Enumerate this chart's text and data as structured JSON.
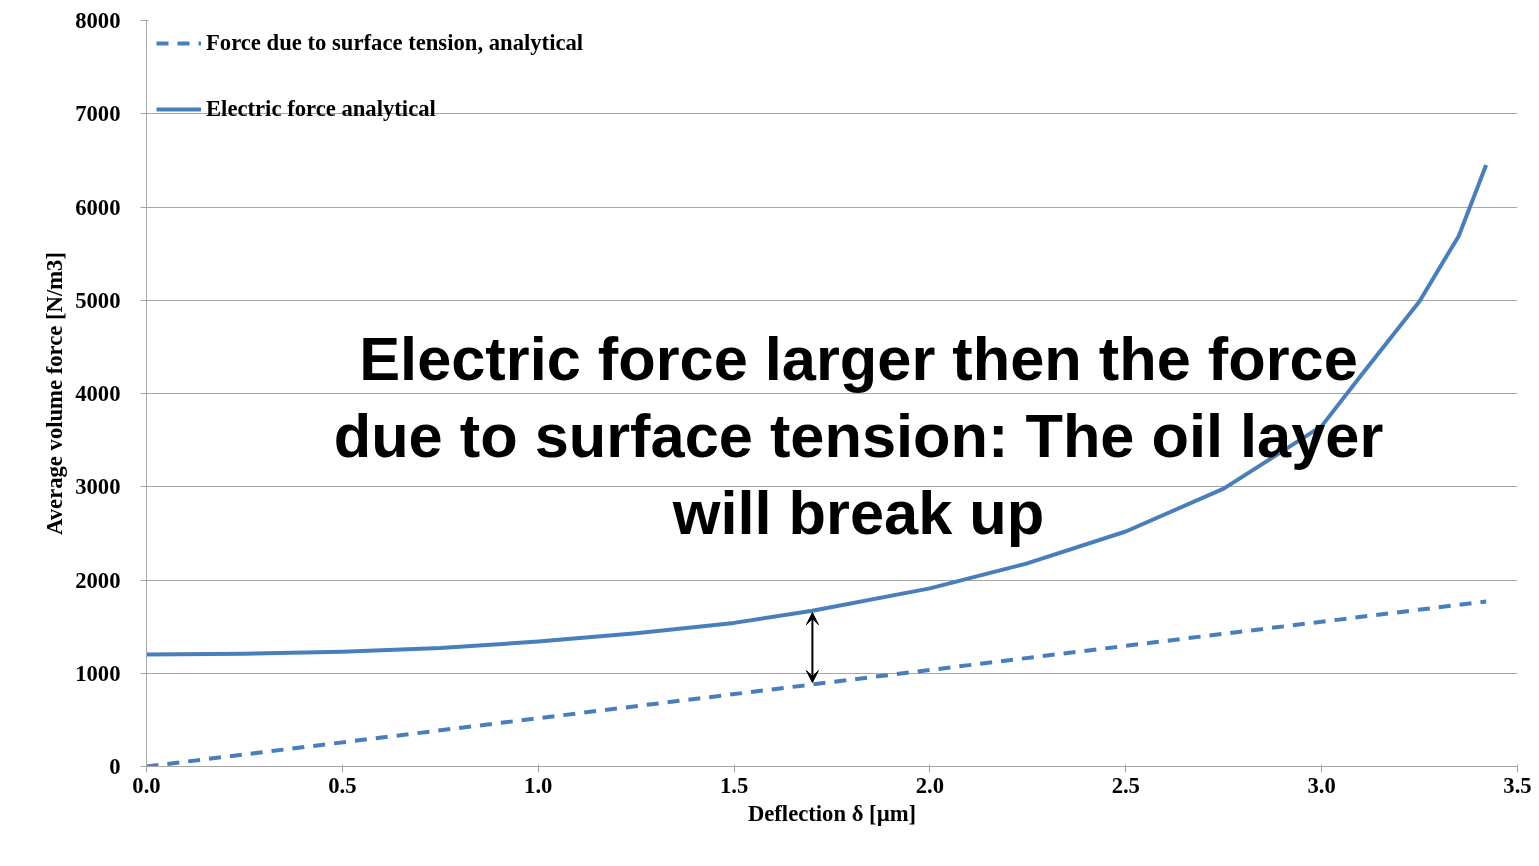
{
  "chart_data": {
    "type": "line",
    "xlabel": "Deflection δ [µm]",
    "ylabel": "Average volume force [N/m3]",
    "xlim": [
      0,
      3.5
    ],
    "ylim": [
      0,
      8000
    ],
    "xticks": [
      {
        "value": 0,
        "label": "0.0"
      },
      {
        "value": 0.5,
        "label": "0.5"
      },
      {
        "value": 1,
        "label": "1.0"
      },
      {
        "value": 1.5,
        "label": "1.5"
      },
      {
        "value": 2,
        "label": "2.0"
      },
      {
        "value": 2.5,
        "label": "2.5"
      },
      {
        "value": 3,
        "label": "3.0"
      },
      {
        "value": 3.5,
        "label": "3.5"
      }
    ],
    "yticks": [
      0,
      1000,
      2000,
      3000,
      4000,
      5000,
      6000,
      7000,
      8000
    ],
    "grid": "y",
    "legend": "top left",
    "marker": "none",
    "series": [
      {
        "name": "Force due to surface tension, analytical",
        "color": "#4a7ebb",
        "line_style": "dashed",
        "x": [
          0,
          1.7,
          3.42
        ],
        "values": [
          0,
          880,
          1770
        ]
      },
      {
        "name": "Electric force analytical",
        "color": "#4a7ebb",
        "line_style": "solid",
        "x": [
          0,
          0.25,
          0.5,
          0.75,
          1,
          1.25,
          1.5,
          1.7,
          2,
          2.25,
          2.5,
          2.75,
          3,
          3.1,
          3.25,
          3.35,
          3.42
        ],
        "values": [
          1200,
          1210,
          1230,
          1270,
          1340,
          1430,
          1540,
          1670,
          1910,
          2180,
          2520,
          2980,
          3650,
          4190,
          4990,
          5690,
          6450
        ]
      }
    ],
    "annotations": [
      {
        "text": "Electric force larger then the force due to surface tension: The oil layer will break up",
        "x": 1.7,
        "y": 1670
      }
    ]
  }
}
